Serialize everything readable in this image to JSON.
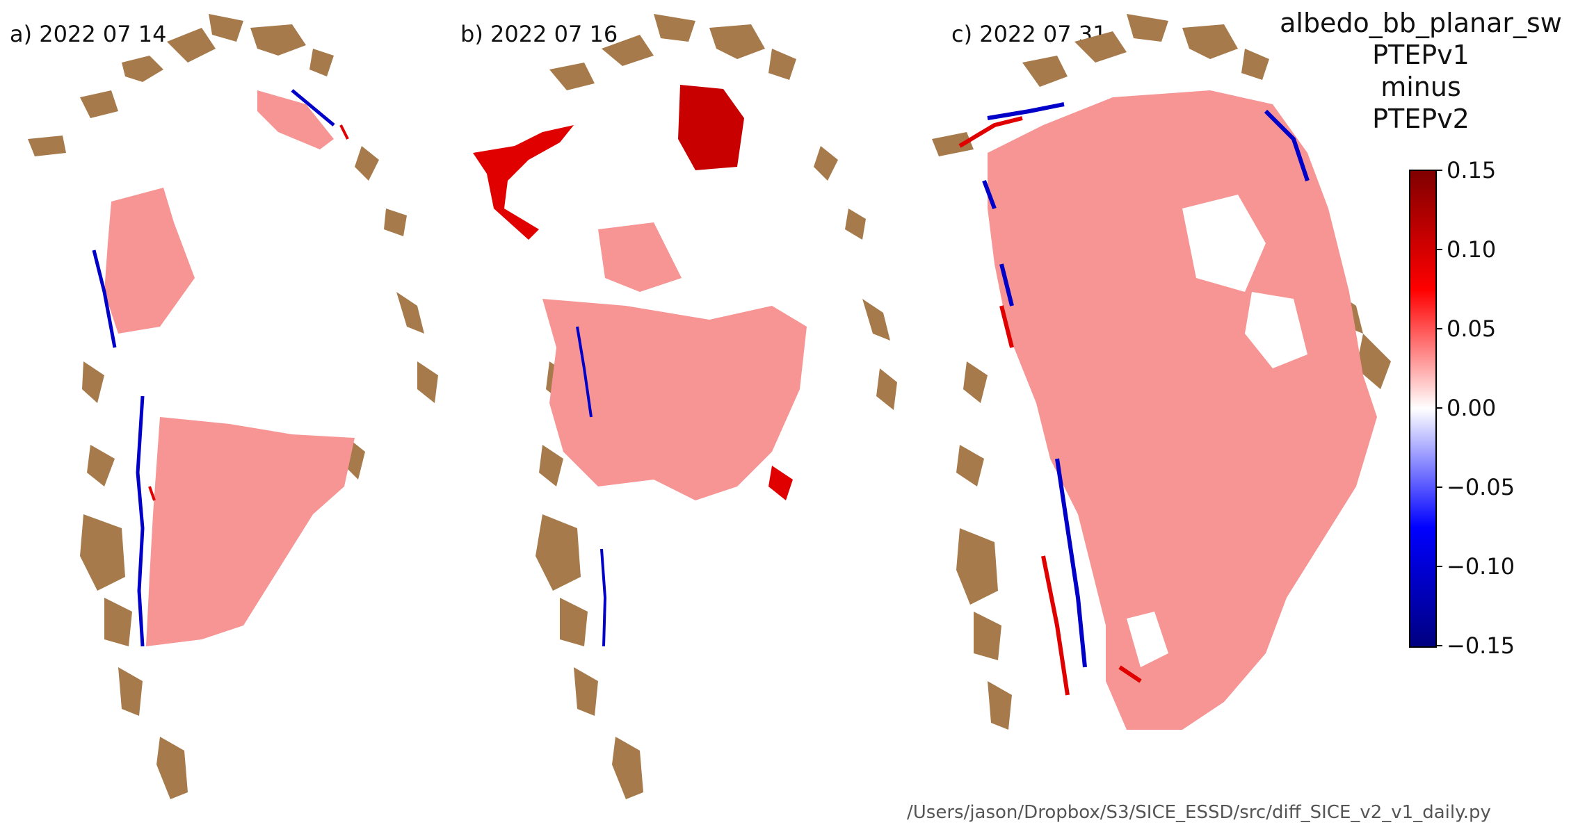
{
  "panels": [
    {
      "label": "a) 2022 07 14"
    },
    {
      "label": "b) 2022 07 16"
    },
    {
      "label": "c) 2022 07 31"
    }
  ],
  "title": {
    "line1": "albedo_bb_planar_sw",
    "line2": "PTEPv1",
    "line3": "minus",
    "line4": "PTEPv2"
  },
  "colorbar": {
    "colormap": "seismic",
    "range": [
      -0.15,
      0.15
    ],
    "ticks": [
      "0.15",
      "0.10",
      "0.05",
      "0.00",
      "−0.05",
      "−0.10",
      "−0.15"
    ]
  },
  "footer": {
    "script_path": "/Users/jason/Dropbox/S3/SICE_ESSD/src/diff_SICE_v2_v1_daily.py"
  },
  "colors": {
    "land": "#a67a4b",
    "positive_diff": "#f57b7b",
    "strong_positive": "#e00000",
    "negative_diff": "#0000c8",
    "no_data": "#ffffff"
  }
}
